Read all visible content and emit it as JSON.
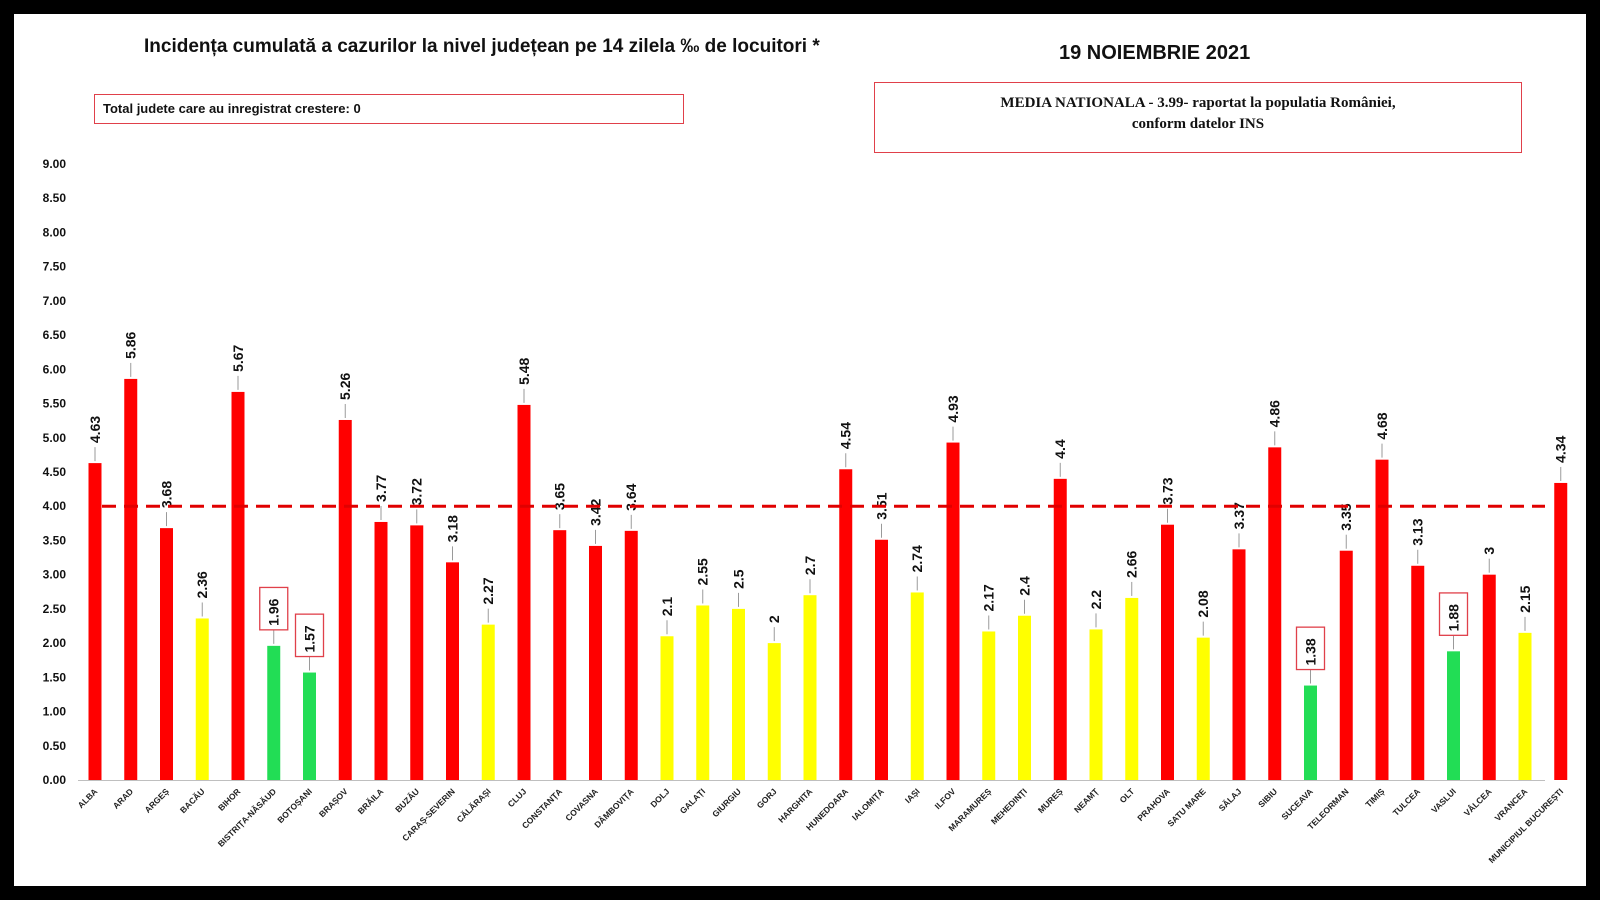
{
  "header": {
    "title": "Incidența cumulată a cazurilor la nivel județean pe 14 zilela ‰ de locuitori *",
    "date": "19 NOIEMBRIE 2021"
  },
  "boxes": {
    "total": "Total judete care au inregistrat crestere: 0",
    "media_line1": "MEDIA NATIONALA  - 3.99-  raportat la populatia României,",
    "media_line2": "conform datelor INS"
  },
  "colors": {
    "red": "#ff0000",
    "yellow": "#ffff00",
    "green": "#22dd55",
    "reference_line": "#e00000",
    "highlight_box": "#e0404a"
  },
  "chart_data": {
    "type": "bar",
    "ylim": [
      0,
      9
    ],
    "yticks": [
      "0.00",
      "0.50",
      "1.00",
      "1.50",
      "2.00",
      "2.50",
      "3.00",
      "3.50",
      "4.00",
      "4.50",
      "5.00",
      "5.50",
      "6.00",
      "6.50",
      "7.00",
      "7.50",
      "8.00",
      "8.50",
      "9.00"
    ],
    "reference_line": 4.0,
    "categories": [
      "ALBA",
      "ARAD",
      "ARGEȘ",
      "BACĂU",
      "BIHOR",
      "BISTRIȚA-NĂSĂUD",
      "BOTOȘANI",
      "BRAȘOV",
      "BRĂILA",
      "BUZĂU",
      "CARAȘ-SEVERIN",
      "CĂLĂRAȘI",
      "CLUJ",
      "CONSTANȚA",
      "COVASNA",
      "DÂMBOVIȚA",
      "DOLJ",
      "GALAȚI",
      "GIURGIU",
      "GORJ",
      "HARGHITA",
      "HUNEDOARA",
      "IALOMIȚA",
      "IAȘI",
      "ILFOV",
      "MARAMUREȘ",
      "MEHEDINȚI",
      "MUREȘ",
      "NEAMȚ",
      "OLT",
      "PRAHOVA",
      "SATU MARE",
      "SĂLAJ",
      "SIBIU",
      "SUCEAVA",
      "TELEORMAN",
      "TIMIȘ",
      "TULCEA",
      "VASLUI",
      "VÂLCEA",
      "VRANCEA",
      "MUNICIPIUL BUCUREȘTI"
    ],
    "values": [
      4.63,
      5.86,
      3.68,
      2.36,
      5.67,
      1.96,
      1.57,
      5.26,
      3.77,
      3.72,
      3.18,
      2.27,
      5.48,
      3.65,
      3.42,
      3.64,
      2.1,
      2.55,
      2.5,
      2,
      2.7,
      4.54,
      3.51,
      2.74,
      4.93,
      2.17,
      2.4,
      4.4,
      2.2,
      2.66,
      3.73,
      2.08,
      3.37,
      4.86,
      1.38,
      3.35,
      4.68,
      3.13,
      1.88,
      3,
      2.15,
      4.34
    ],
    "labels": [
      "4.63",
      "5.86",
      "3.68",
      "2.36",
      "5.67",
      "1.96",
      "1.57",
      "5.26",
      "3.77",
      "3.72",
      "3.18",
      "2.27",
      "5.48",
      "3.65",
      "3.42",
      "3.64",
      "2.1",
      "2.55",
      "2.5",
      "2",
      "2.7",
      "4.54",
      "3.51",
      "2.74",
      "4.93",
      "2.17",
      "2.4",
      "4.4",
      "2.2",
      "2.66",
      "3.73",
      "2.08",
      "3.37",
      "4.86",
      "1.38",
      "3.35",
      "4.68",
      "3.13",
      "1.88",
      "3",
      "2.15",
      "4.34"
    ],
    "colors": [
      "red",
      "red",
      "red",
      "yellow",
      "red",
      "green",
      "green",
      "red",
      "red",
      "red",
      "red",
      "yellow",
      "red",
      "red",
      "red",
      "red",
      "yellow",
      "yellow",
      "yellow",
      "yellow",
      "yellow",
      "red",
      "red",
      "yellow",
      "red",
      "yellow",
      "yellow",
      "red",
      "yellow",
      "yellow",
      "red",
      "yellow",
      "red",
      "red",
      "green",
      "red",
      "red",
      "red",
      "green",
      "red",
      "yellow",
      "red"
    ],
    "boxed_labels": [
      5,
      6,
      34,
      38
    ],
    "grid": false,
    "legend": "none"
  }
}
